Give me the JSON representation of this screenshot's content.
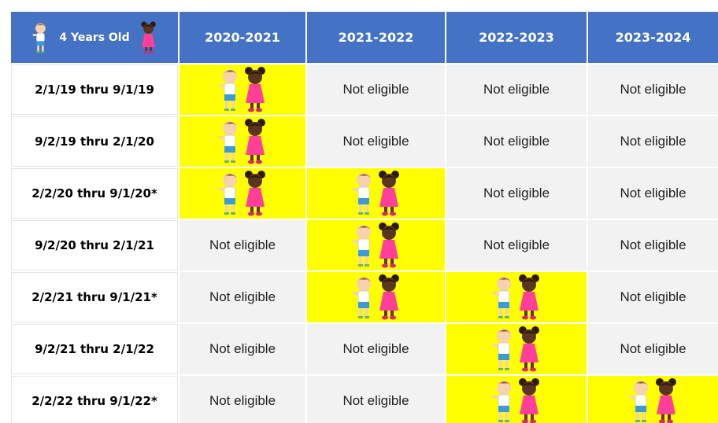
{
  "header": {
    "title": "4 Years Old",
    "columns": [
      "2020-2021",
      "2021-2022",
      "2022-2023",
      "2023-2024"
    ]
  },
  "table": {
    "rows": [
      {
        "label": "2/1/19 thru 9/1/19",
        "cells": [
          null,
          "Not eligible",
          "Not eligible",
          "Not eligible"
        ]
      },
      {
        "label": "9/2/19 thru 2/1/20",
        "cells": [
          null,
          "Not eligible",
          "Not eligible",
          "Not eligible"
        ]
      },
      {
        "label": "2/2/20 thru 9/1/20*",
        "cells": [
          null,
          null,
          "Not eligible",
          "Not eligible"
        ]
      },
      {
        "label": "9/2/20 thru 2/1/21",
        "cells": [
          "Not eligible",
          null,
          "Not eligible",
          "Not eligible"
        ]
      },
      {
        "label": "2/2/21 thru 9/1/21*",
        "cells": [
          "Not eligible",
          null,
          null,
          "Not eligible"
        ]
      },
      {
        "label": "9/2/21 thru 2/1/22",
        "cells": [
          "Not eligible",
          "Not eligible",
          null,
          "Not eligible"
        ]
      },
      {
        "label": "2/2/22 thru 9/1/22*",
        "cells": [
          "Not eligible",
          "Not eligible",
          null,
          null
        ]
      }
    ]
  }
}
